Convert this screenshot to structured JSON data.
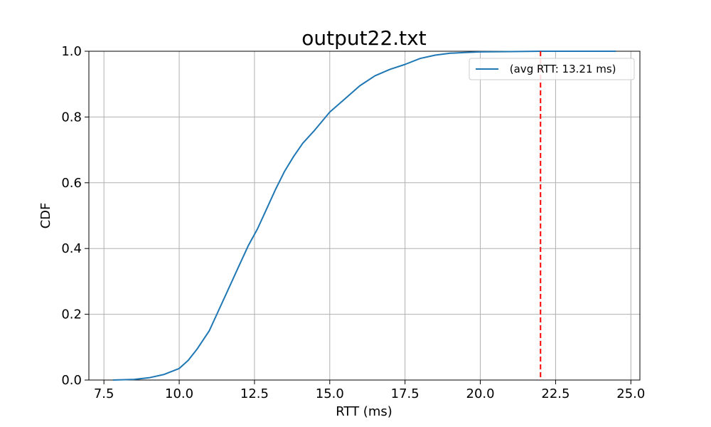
{
  "chart_data": {
    "type": "line",
    "title": "output22.txt",
    "xlabel": "RTT (ms)",
    "ylabel": "CDF",
    "xlim": [
      7.0,
      25.3
    ],
    "ylim": [
      0.0,
      1.0
    ],
    "xticks": [
      7.5,
      10.0,
      12.5,
      15.0,
      17.5,
      20.0,
      22.5,
      25.0
    ],
    "xtick_labels": [
      "7.5",
      "10.0",
      "12.5",
      "15.0",
      "17.5",
      "20.0",
      "22.5",
      "25.0"
    ],
    "yticks": [
      0.0,
      0.2,
      0.4,
      0.6,
      0.8,
      1.0
    ],
    "ytick_labels": [
      "0.0",
      "0.2",
      "0.4",
      "0.6",
      "0.8",
      "1.0"
    ],
    "grid": true,
    "legend_position": "top-right",
    "series": [
      {
        "name": " (avg RTT: 13.21 ms)",
        "color": "#1f77b4",
        "x": [
          7.8,
          8.5,
          9.0,
          9.5,
          10.0,
          10.3,
          10.6,
          11.0,
          11.3,
          11.6,
          12.0,
          12.3,
          12.6,
          12.9,
          13.2,
          13.5,
          13.8,
          14.1,
          14.5,
          15.0,
          15.5,
          16.0,
          16.5,
          17.0,
          17.5,
          18.0,
          18.5,
          19.0,
          19.5,
          20.0,
          21.0,
          22.0,
          23.0,
          24.5
        ],
        "y": [
          0.0,
          0.002,
          0.007,
          0.017,
          0.035,
          0.06,
          0.095,
          0.15,
          0.21,
          0.27,
          0.35,
          0.41,
          0.46,
          0.52,
          0.58,
          0.635,
          0.68,
          0.72,
          0.76,
          0.815,
          0.855,
          0.895,
          0.925,
          0.945,
          0.96,
          0.978,
          0.988,
          0.994,
          0.996,
          0.998,
          0.999,
          1.0,
          1.0,
          1.0
        ]
      }
    ],
    "vline": {
      "x": 22.0,
      "color": "#ff0000",
      "style": "dashed"
    }
  }
}
